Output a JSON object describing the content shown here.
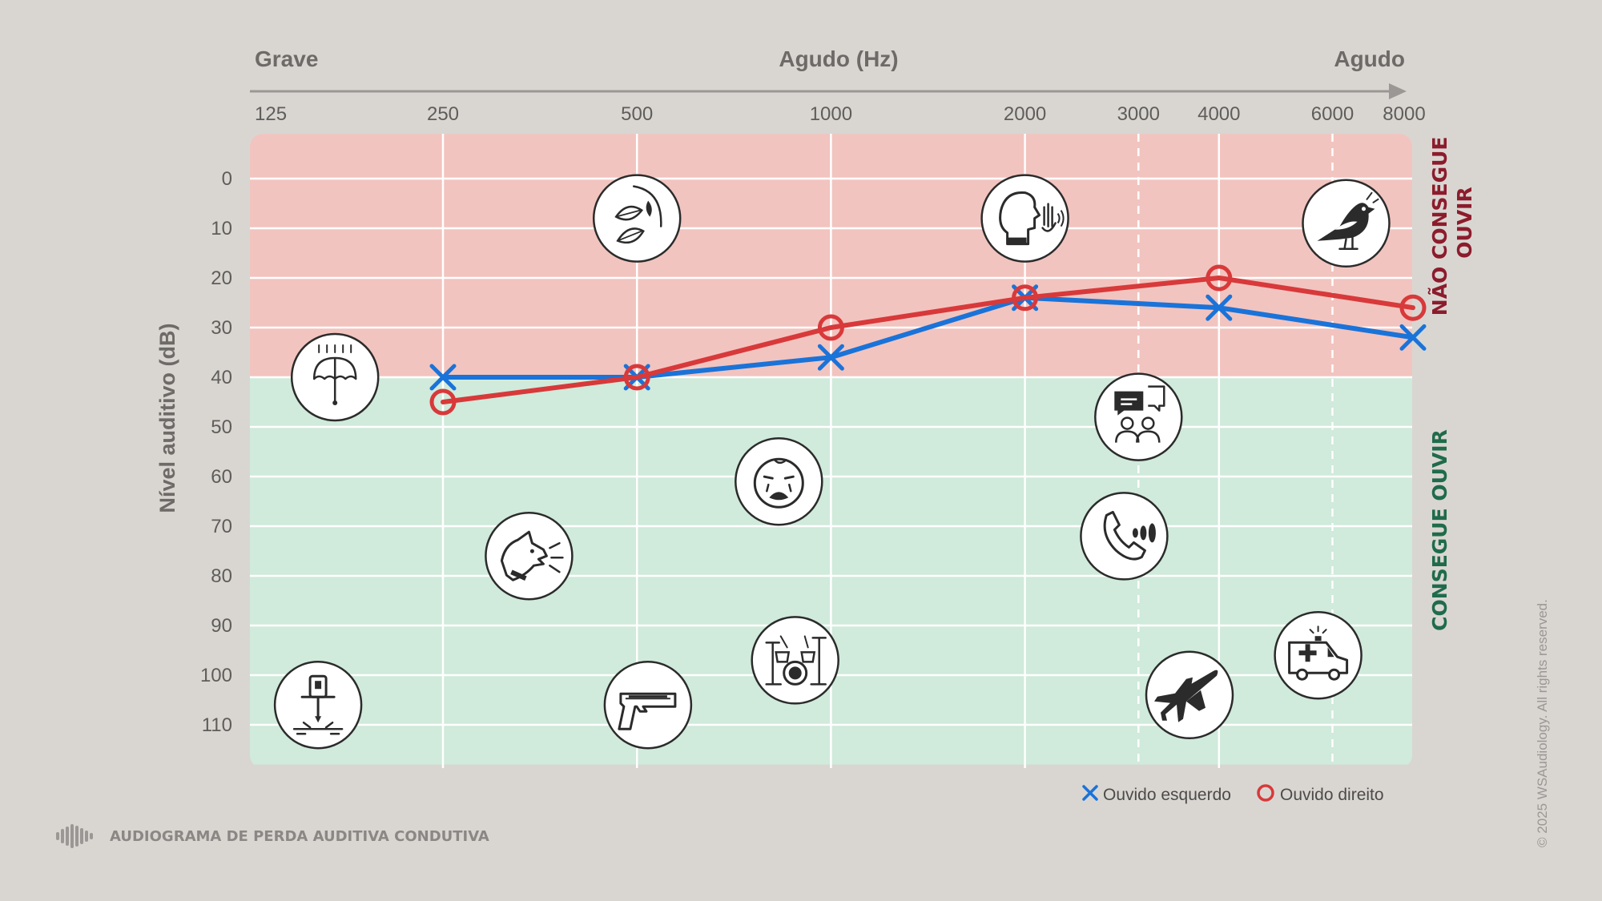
{
  "title": "AUDIOGRAMA DE PERDA AUDITIVA CONDUTIVA",
  "copyright": "© 2025 WSAudiology. All rights reserved.",
  "chart_data": {
    "type": "line",
    "top_axis": {
      "left_label": "Grave",
      "center_label": "Agudo (Hz)",
      "right_label": "Agudo"
    },
    "x_ticks": [
      125,
      250,
      500,
      1000,
      2000,
      3000,
      4000,
      6000,
      8000
    ],
    "x_tick_labels": [
      "125",
      "250",
      "500",
      "1000",
      "2000",
      "3000",
      "4000",
      "6000",
      "8000"
    ],
    "x_scale": "log",
    "dashed_gridlines_at": [
      3000,
      6000
    ],
    "ylabel": "Nível auditivo (dB)",
    "y_ticks": [
      0,
      10,
      20,
      30,
      40,
      50,
      60,
      70,
      80,
      90,
      100,
      110
    ],
    "y_tick_labels": [
      "0",
      "10",
      "20",
      "30",
      "40",
      "50",
      "60",
      "70",
      "80",
      "90",
      "100",
      "110"
    ],
    "ylim": [
      -9,
      118
    ],
    "y_inverted": true,
    "zones": [
      {
        "name": "cannot-hear",
        "label": "NÃO CONSEGUE OUVIR",
        "from_db": -9,
        "to_db": 40,
        "color": "#f2c4bf"
      },
      {
        "name": "can-hear",
        "label": "CONSEGUE OUVIR",
        "from_db": 40,
        "to_db": 118,
        "color": "#d0eadb"
      }
    ],
    "series": [
      {
        "name": "Ouvido esquerdo",
        "marker": "x",
        "color": "#1a73d9",
        "x": [
          250,
          500,
          1000,
          2000,
          4000,
          8000
        ],
        "y": [
          40,
          40,
          36,
          24,
          26,
          32
        ]
      },
      {
        "name": "Ouvido direito",
        "marker": "o",
        "color": "#d8393a",
        "x": [
          250,
          500,
          1000,
          2000,
          4000,
          8000
        ],
        "y": [
          45,
          40,
          30,
          24,
          20,
          26
        ]
      }
    ],
    "legend_position": "bottom-right",
    "sound_icons": [
      {
        "icon": "rain-umbrella-icon",
        "freq": 170,
        "db": 40
      },
      {
        "icon": "rustling-leaves-icon",
        "freq": 500,
        "db": 8
      },
      {
        "icon": "whisper-icon",
        "freq": 2000,
        "db": 8
      },
      {
        "icon": "bird-icon",
        "freq": 6300,
        "db": 9
      },
      {
        "icon": "conversation-icon",
        "freq": 3000,
        "db": 48
      },
      {
        "icon": "baby-crying-icon",
        "freq": 830,
        "db": 61
      },
      {
        "icon": "barking-dog-icon",
        "freq": 340,
        "db": 76
      },
      {
        "icon": "telephone-ringing-icon",
        "freq": 2850,
        "db": 72
      },
      {
        "icon": "drum-kit-icon",
        "freq": 880,
        "db": 97
      },
      {
        "icon": "handgun-icon",
        "freq": 520,
        "db": 106
      },
      {
        "icon": "airplane-icon",
        "freq": 3600,
        "db": 104
      },
      {
        "icon": "ambulance-icon",
        "freq": 5700,
        "db": 96
      },
      {
        "icon": "jackhammer-icon",
        "freq": 160,
        "db": 106
      }
    ],
    "colors": {
      "background": "#d9d6d2",
      "grid": "#ffffff",
      "axis_text": "#5f5d5a",
      "title_text": "#6d6a67",
      "cannot_hear_text": "#8c1c2c",
      "can_hear_text": "#1f6b4a",
      "icon_stroke": "#2b2b2b"
    }
  }
}
